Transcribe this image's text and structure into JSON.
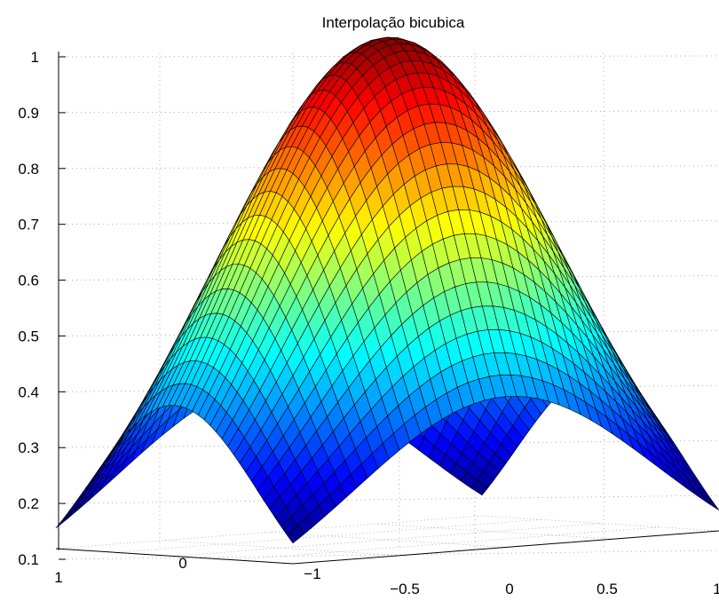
{
  "chart_data": {
    "type": "surface",
    "title": "Interpolação bicubica",
    "function": "gaussian bump",
    "x_range": [
      -1,
      1
    ],
    "y_range": [
      -1,
      1
    ],
    "z_range": [
      0.1,
      1
    ],
    "peak_z": 1,
    "corner_z": 0.135,
    "edge_mid_z": 0.37,
    "grid_size": 41,
    "z_ticks": [
      "0.1",
      "0.2",
      "0.3",
      "0.4",
      "0.5",
      "0.6",
      "0.7",
      "0.8",
      "0.9",
      "1"
    ],
    "x_ticks": [
      "−1",
      "−0.5",
      "0",
      "0.5",
      "1"
    ],
    "y_ticks": [
      "1",
      "0"
    ],
    "grid": true,
    "colormap": "jet"
  }
}
